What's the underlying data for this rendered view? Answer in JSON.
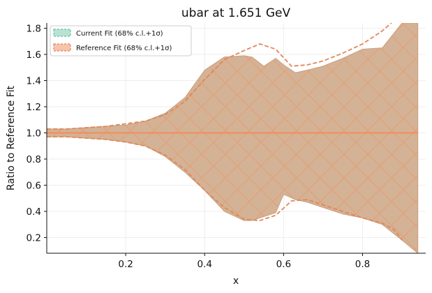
{
  "chart_data": {
    "type": "area",
    "title": "ubar at 1.651 GeV",
    "xlabel": "x",
    "ylabel": "Ratio to Reference Fit",
    "xlim": [
      0.0,
      0.96
    ],
    "ylim": [
      0.08,
      1.84
    ],
    "xticks": [
      "0.2",
      "0.4",
      "0.6",
      "0.8"
    ],
    "xtick_values": [
      0.2,
      0.4,
      0.6,
      0.8
    ],
    "yticks": [
      "0.2",
      "0.4",
      "0.6",
      "0.8",
      "1.0",
      "1.2",
      "1.4",
      "1.6",
      "1.8"
    ],
    "ytick_values": [
      0.2,
      0.4,
      0.6,
      0.8,
      1.0,
      1.2,
      1.4,
      1.6,
      1.8
    ],
    "grid": true,
    "legend_position": "top-left",
    "series": [
      {
        "name": "Current Fit (68% c.l.+1σ)",
        "color": "#66c2a5",
        "x": [
          0.0,
          0.05,
          0.1,
          0.15,
          0.2,
          0.25,
          0.3,
          0.35,
          0.4,
          0.45,
          0.5,
          0.52,
          0.55,
          0.58,
          0.6,
          0.63,
          0.66,
          0.7,
          0.75,
          0.8,
          0.85,
          0.9,
          0.94
        ],
        "upper": [
          1.03,
          1.03,
          1.04,
          1.05,
          1.06,
          1.09,
          1.15,
          1.27,
          1.48,
          1.58,
          1.59,
          1.58,
          1.51,
          1.57,
          1.52,
          1.46,
          1.48,
          1.51,
          1.57,
          1.64,
          1.65,
          1.84,
          1.84
        ],
        "lower": [
          0.97,
          0.97,
          0.96,
          0.95,
          0.93,
          0.9,
          0.82,
          0.7,
          0.56,
          0.4,
          0.33,
          0.33,
          0.36,
          0.39,
          0.53,
          0.49,
          0.47,
          0.43,
          0.38,
          0.35,
          0.3,
          0.18,
          0.08
        ],
        "central": 1.0
      },
      {
        "name": "Reference Fit (68% c.l.+1σ)",
        "color": "#fc8d62",
        "x": [
          0.0,
          0.05,
          0.1,
          0.15,
          0.2,
          0.25,
          0.3,
          0.35,
          0.4,
          0.45,
          0.5,
          0.54,
          0.58,
          0.62,
          0.66,
          0.7,
          0.75,
          0.8,
          0.85,
          0.88,
          0.9
        ],
        "upper": [
          1.03,
          1.03,
          1.04,
          1.05,
          1.07,
          1.09,
          1.14,
          1.24,
          1.41,
          1.56,
          1.63,
          1.68,
          1.64,
          1.51,
          1.52,
          1.55,
          1.61,
          1.68,
          1.78,
          1.86,
          1.9
        ],
        "lower": [
          0.97,
          0.97,
          0.96,
          0.95,
          0.93,
          0.9,
          0.83,
          0.72,
          0.56,
          0.43,
          0.34,
          0.33,
          0.37,
          0.48,
          0.49,
          0.45,
          0.4,
          0.35,
          0.31,
          0.26,
          0.18
        ],
        "central": 1.0
      }
    ]
  }
}
